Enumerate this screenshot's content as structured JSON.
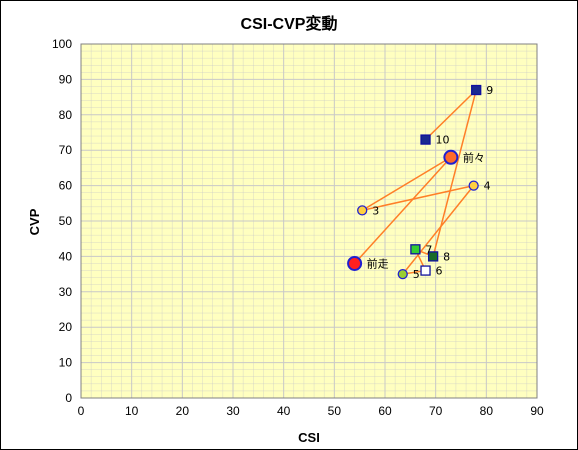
{
  "chart_data": {
    "type": "scatter",
    "title": "CSI-CVP変動",
    "xlabel": "CSI",
    "ylabel": "CVP",
    "xlim": [
      0,
      90
    ],
    "ylim": [
      0,
      100
    ],
    "xticks": [
      0,
      10,
      20,
      30,
      40,
      50,
      60,
      70,
      80,
      90
    ],
    "yticks": [
      0,
      10,
      20,
      30,
      40,
      50,
      60,
      70,
      80,
      90,
      100
    ],
    "grid": true,
    "plot_background": "#FFFFC0",
    "grid_color": "#C8C8C8",
    "connector_color": "#FF7F27",
    "points": [
      {
        "label": "前走",
        "x": 54,
        "y": 38,
        "marker": "circle",
        "size": "large",
        "fill": "#FF2020",
        "stroke": "#2020D0"
      },
      {
        "label": "前々",
        "x": 73,
        "y": 68,
        "marker": "circle",
        "size": "large",
        "fill": "#FF6A2A",
        "stroke": "#2020D0"
      },
      {
        "label": "3",
        "x": 55.5,
        "y": 53,
        "marker": "circle",
        "size": "small",
        "fill": "#FFD040",
        "stroke": "#2020D0"
      },
      {
        "label": "4",
        "x": 77.5,
        "y": 60,
        "marker": "circle",
        "size": "small",
        "fill": "#FFD040",
        "stroke": "#2020D0"
      },
      {
        "label": "5",
        "x": 63.5,
        "y": 35,
        "marker": "circle",
        "size": "small",
        "fill": "#9ACD32",
        "stroke": "#2020D0"
      },
      {
        "label": "6",
        "x": 68,
        "y": 36,
        "marker": "square",
        "size": "small",
        "fill": "#FFFFFF",
        "stroke": "#1010A0"
      },
      {
        "label": "7",
        "x": 66,
        "y": 42,
        "marker": "square",
        "size": "small",
        "fill": "#33CC33",
        "stroke": "#1010A0"
      },
      {
        "label": "8",
        "x": 69.5,
        "y": 40,
        "marker": "square",
        "size": "small",
        "fill": "#1A6B2A",
        "stroke": "#1010A0"
      },
      {
        "label": "9",
        "x": 78,
        "y": 87,
        "marker": "square",
        "size": "small",
        "fill": "#1A2A90",
        "stroke": "#1010A0"
      },
      {
        "label": "10",
        "x": 68,
        "y": 73,
        "marker": "square",
        "size": "small",
        "fill": "#1A2A90",
        "stroke": "#1010A0"
      }
    ],
    "connectors": [
      [
        0,
        1
      ],
      [
        1,
        2
      ],
      [
        2,
        3
      ],
      [
        3,
        4
      ],
      [
        4,
        5
      ],
      [
        5,
        6
      ],
      [
        6,
        7
      ],
      [
        7,
        8
      ],
      [
        8,
        9
      ]
    ]
  }
}
